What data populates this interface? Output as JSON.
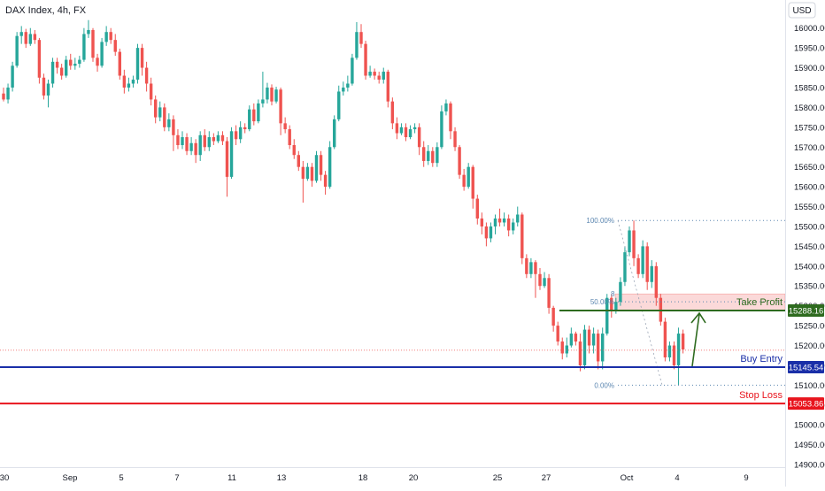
{
  "header": {
    "title": "DAX Index, 4h, FX",
    "currency": "USD"
  },
  "chart_data": {
    "type": "candlestick",
    "title": "DAX Index, 4h, FX",
    "y_axis_ticks": [
      14900,
      14950,
      15000,
      15050,
      15100,
      15150,
      15200,
      15250,
      15300,
      15350,
      15400,
      15450,
      15500,
      15550,
      15600,
      15650,
      15700,
      15750,
      15800,
      15850,
      15900,
      15950,
      16000
    ],
    "ylim": [
      14885,
      16040
    ],
    "x_axis_ticks": [
      "30",
      "Sep",
      "5",
      "7",
      "11",
      "13",
      "18",
      "20",
      "25",
      "27",
      "Oct",
      "4",
      "9"
    ],
    "colors": {
      "up": "#26a69a",
      "down": "#ef5350"
    },
    "candles": [
      [
        15835,
        15820,
        15850,
        15815
      ],
      [
        15820,
        15850,
        15860,
        15810
      ],
      [
        15850,
        15905,
        15915,
        15840
      ],
      [
        15905,
        15980,
        15990,
        15900
      ],
      [
        15980,
        15990,
        16005,
        15960
      ],
      [
        15990,
        15960,
        15998,
        15950
      ],
      [
        15960,
        15985,
        16000,
        15955
      ],
      [
        15985,
        15970,
        15995,
        15960
      ],
      [
        15970,
        15875,
        15975,
        15860
      ],
      [
        15875,
        15830,
        15885,
        15820
      ],
      [
        15830,
        15860,
        15870,
        15800
      ],
      [
        15860,
        15915,
        15925,
        15850
      ],
      [
        15915,
        15900,
        15925,
        15885
      ],
      [
        15900,
        15880,
        15910,
        15870
      ],
      [
        15880,
        15920,
        15930,
        15875
      ],
      [
        15920,
        15905,
        15935,
        15895
      ],
      [
        15905,
        15910,
        15925,
        15895
      ],
      [
        15910,
        15920,
        15930,
        15900
      ],
      [
        15920,
        15985,
        16000,
        15915
      ],
      [
        15985,
        15995,
        16020,
        15975
      ],
      [
        15995,
        15925,
        16000,
        15915
      ],
      [
        15925,
        15905,
        15935,
        15890
      ],
      [
        15905,
        15965,
        15975,
        15900
      ],
      [
        15965,
        15990,
        16005,
        15955
      ],
      [
        15990,
        15970,
        16000,
        15960
      ],
      [
        15970,
        15940,
        15985,
        15930
      ],
      [
        15940,
        15880,
        15948,
        15870
      ],
      [
        15880,
        15850,
        15895,
        15835
      ],
      [
        15850,
        15860,
        15875,
        15840
      ],
      [
        15860,
        15870,
        15880,
        15850
      ],
      [
        15870,
        15950,
        15960,
        15860
      ],
      [
        15950,
        15900,
        15960,
        15880
      ],
      [
        15900,
        15860,
        15915,
        15840
      ],
      [
        15860,
        15820,
        15875,
        15805
      ],
      [
        15820,
        15775,
        15830,
        15760
      ],
      [
        15775,
        15800,
        15815,
        15765
      ],
      [
        15800,
        15750,
        15810,
        15740
      ],
      [
        15750,
        15770,
        15785,
        15740
      ],
      [
        15770,
        15730,
        15780,
        15690
      ],
      [
        15730,
        15705,
        15745,
        15695
      ],
      [
        15705,
        15725,
        15740,
        15695
      ],
      [
        15725,
        15690,
        15735,
        15680
      ],
      [
        15690,
        15710,
        15725,
        15680
      ],
      [
        15710,
        15680,
        15720,
        15660
      ],
      [
        15680,
        15730,
        15740,
        15665
      ],
      [
        15730,
        15700,
        15745,
        15690
      ],
      [
        15700,
        15725,
        15740,
        15690
      ],
      [
        15725,
        15715,
        15735,
        15705
      ],
      [
        15715,
        15730,
        15740,
        15710
      ],
      [
        15730,
        15715,
        15740,
        15705
      ],
      [
        15715,
        15625,
        15725,
        15575
      ],
      [
        15625,
        15740,
        15750,
        15620
      ],
      [
        15740,
        15720,
        15755,
        15705
      ],
      [
        15720,
        15750,
        15765,
        15710
      ],
      [
        15750,
        15745,
        15760,
        15735
      ],
      [
        15745,
        15795,
        15805,
        15740
      ],
      [
        15795,
        15765,
        15810,
        15755
      ],
      [
        15765,
        15810,
        15820,
        15760
      ],
      [
        15810,
        15820,
        15890,
        15800
      ],
      [
        15820,
        15850,
        15862,
        15810
      ],
      [
        15850,
        15815,
        15858,
        15805
      ],
      [
        15815,
        15845,
        15852,
        15810
      ],
      [
        15845,
        15760,
        15850,
        15730
      ],
      [
        15760,
        15745,
        15775,
        15735
      ],
      [
        15745,
        15705,
        15755,
        15695
      ],
      [
        15705,
        15680,
        15720,
        15670
      ],
      [
        15680,
        15650,
        15690,
        15640
      ],
      [
        15650,
        15620,
        15665,
        15560
      ],
      [
        15620,
        15650,
        15660,
        15615
      ],
      [
        15650,
        15615,
        15660,
        15600
      ],
      [
        15615,
        15680,
        15690,
        15610
      ],
      [
        15680,
        15630,
        15690,
        15615
      ],
      [
        15630,
        15600,
        15640,
        15580
      ],
      [
        15600,
        15700,
        15715,
        15595
      ],
      [
        15700,
        15770,
        15780,
        15695
      ],
      [
        15770,
        15840,
        15855,
        15765
      ],
      [
        15840,
        15850,
        15865,
        15830
      ],
      [
        15850,
        15860,
        15880,
        15840
      ],
      [
        15860,
        15925,
        15935,
        15855
      ],
      [
        15925,
        15990,
        16015,
        15920
      ],
      [
        15990,
        15960,
        16010,
        15950
      ],
      [
        15960,
        15880,
        15968,
        15870
      ],
      [
        15880,
        15890,
        15905,
        15875
      ],
      [
        15890,
        15880,
        15898,
        15870
      ],
      [
        15880,
        15870,
        15890,
        15860
      ],
      [
        15870,
        15890,
        15900,
        15860
      ],
      [
        15890,
        15815,
        15895,
        15800
      ],
      [
        15815,
        15760,
        15825,
        15745
      ],
      [
        15760,
        15735,
        15775,
        15720
      ],
      [
        15735,
        15750,
        15760,
        15730
      ],
      [
        15750,
        15725,
        15760,
        15715
      ],
      [
        15725,
        15745,
        15755,
        15720
      ],
      [
        15745,
        15750,
        15760,
        15735
      ],
      [
        15750,
        15700,
        15760,
        15680
      ],
      [
        15700,
        15665,
        15715,
        15650
      ],
      [
        15665,
        15690,
        15705,
        15655
      ],
      [
        15690,
        15660,
        15700,
        15650
      ],
      [
        15660,
        15700,
        15712,
        15650
      ],
      [
        15700,
        15790,
        15805,
        15695
      ],
      [
        15790,
        15810,
        15820,
        15780
      ],
      [
        15810,
        15740,
        15815,
        15720
      ],
      [
        15740,
        15700,
        15750,
        15690
      ],
      [
        15700,
        15630,
        15705,
        15620
      ],
      [
        15630,
        15600,
        15645,
        15590
      ],
      [
        15600,
        15650,
        15660,
        15595
      ],
      [
        15650,
        15570,
        15655,
        15545
      ],
      [
        15570,
        15520,
        15580,
        15505
      ],
      [
        15520,
        15500,
        15535,
        15480
      ],
      [
        15500,
        15470,
        15510,
        15450
      ],
      [
        15470,
        15500,
        15510,
        15460
      ],
      [
        15500,
        15520,
        15530,
        15480
      ],
      [
        15520,
        15510,
        15545,
        15500
      ],
      [
        15510,
        15520,
        15535,
        15500
      ],
      [
        15520,
        15490,
        15530,
        15475
      ],
      [
        15490,
        15510,
        15520,
        15480
      ],
      [
        15510,
        15530,
        15550,
        15500
      ],
      [
        15530,
        15420,
        15535,
        15405
      ],
      [
        15420,
        15380,
        15430,
        15370
      ],
      [
        15380,
        15410,
        15420,
        15370
      ],
      [
        15410,
        15380,
        15415,
        15320
      ],
      [
        15380,
        15350,
        15395,
        15340
      ],
      [
        15350,
        15370,
        15385,
        15345
      ],
      [
        15370,
        15295,
        15380,
        15280
      ],
      [
        15295,
        15250,
        15300,
        15235
      ],
      [
        15250,
        15210,
        15260,
        15200
      ],
      [
        15210,
        15180,
        15220,
        15165
      ],
      [
        15180,
        15200,
        15220,
        15170
      ],
      [
        15200,
        15230,
        15245,
        15195
      ],
      [
        15230,
        15210,
        15235,
        15200
      ],
      [
        15210,
        15150,
        15230,
        15135
      ],
      [
        15150,
        15240,
        15252,
        15140
      ],
      [
        15240,
        15200,
        15250,
        15180
      ],
      [
        15200,
        15230,
        15245,
        15180
      ],
      [
        15230,
        15160,
        15240,
        15140
      ],
      [
        15160,
        15230,
        15245,
        15140
      ],
      [
        15230,
        15320,
        15330,
        15225
      ],
      [
        15320,
        15290,
        15330,
        15270
      ],
      [
        15290,
        15310,
        15320,
        15280
      ],
      [
        15310,
        15360,
        15372,
        15300
      ],
      [
        15360,
        15435,
        15450,
        15350
      ],
      [
        15435,
        15490,
        15500,
        15425
      ],
      [
        15490,
        15420,
        15515,
        15400
      ],
      [
        15420,
        15380,
        15430,
        15370
      ],
      [
        15380,
        15450,
        15465,
        15370
      ],
      [
        15450,
        15360,
        15460,
        15340
      ],
      [
        15360,
        15400,
        15415,
        15345
      ],
      [
        15400,
        15320,
        15410,
        15300
      ],
      [
        15320,
        15260,
        15330,
        15250
      ],
      [
        15260,
        15170,
        15270,
        15160
      ],
      [
        15170,
        15200,
        15210,
        15160
      ],
      [
        15200,
        15150,
        15210,
        15140
      ],
      [
        15150,
        15230,
        15245,
        15100
      ],
      [
        15230,
        15190,
        15240,
        15180
      ]
    ],
    "annotations": {
      "fib_levels": [
        {
          "label": "100.00%",
          "value": 15515
        },
        {
          "label": "50.00%",
          "value": 15310
        },
        {
          "label": "0.00%",
          "value": 15100
        }
      ],
      "fib_partial_label": "8",
      "take_profit": {
        "label": "Take Profit",
        "value": 15288.16,
        "price_label": "15288.16",
        "zone": [
          15288.16,
          15330
        ]
      },
      "buy_entry": {
        "label": "Buy Entry",
        "value": 15145.54,
        "price_label": "15145.54"
      },
      "stop_loss": {
        "label": "Stop Loss",
        "value": 15053.86,
        "price_label": "15053.86"
      },
      "current_price_line": 15188
    }
  }
}
